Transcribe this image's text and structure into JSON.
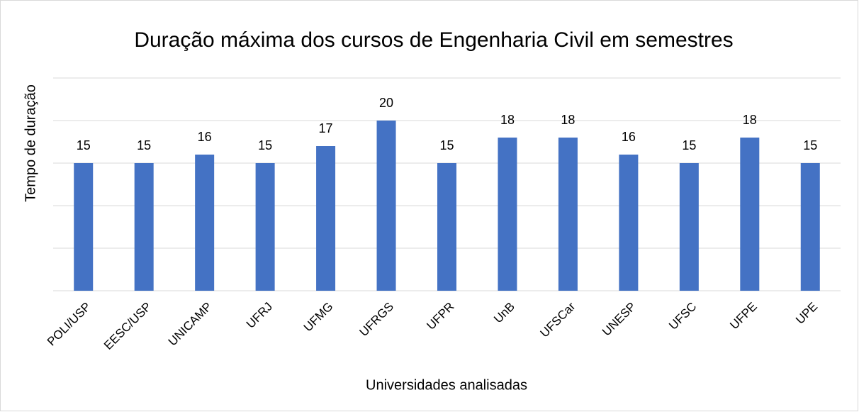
{
  "chart_data": {
    "type": "bar",
    "title": "Duração máxima dos cursos de Engenharia Civil em semestres",
    "y_label": "Tempo de duração",
    "x_label": "Universidades analisadas",
    "categories": [
      "POLI/USP",
      "EESC/USP",
      "UNICAMP",
      "UFRJ",
      "UFMG",
      "UFRGS",
      "UFPR",
      "UnB",
      "UFSCar",
      "UNESP",
      "UFSC",
      "UFPE",
      "UPE"
    ],
    "values": [
      15,
      15,
      16,
      15,
      17,
      20,
      15,
      18,
      18,
      16,
      15,
      18,
      15
    ],
    "color": "#4472c4",
    "ylim": [
      0,
      25
    ],
    "yticks": [
      0,
      5,
      10,
      15,
      20,
      25
    ],
    "grid": true
  }
}
